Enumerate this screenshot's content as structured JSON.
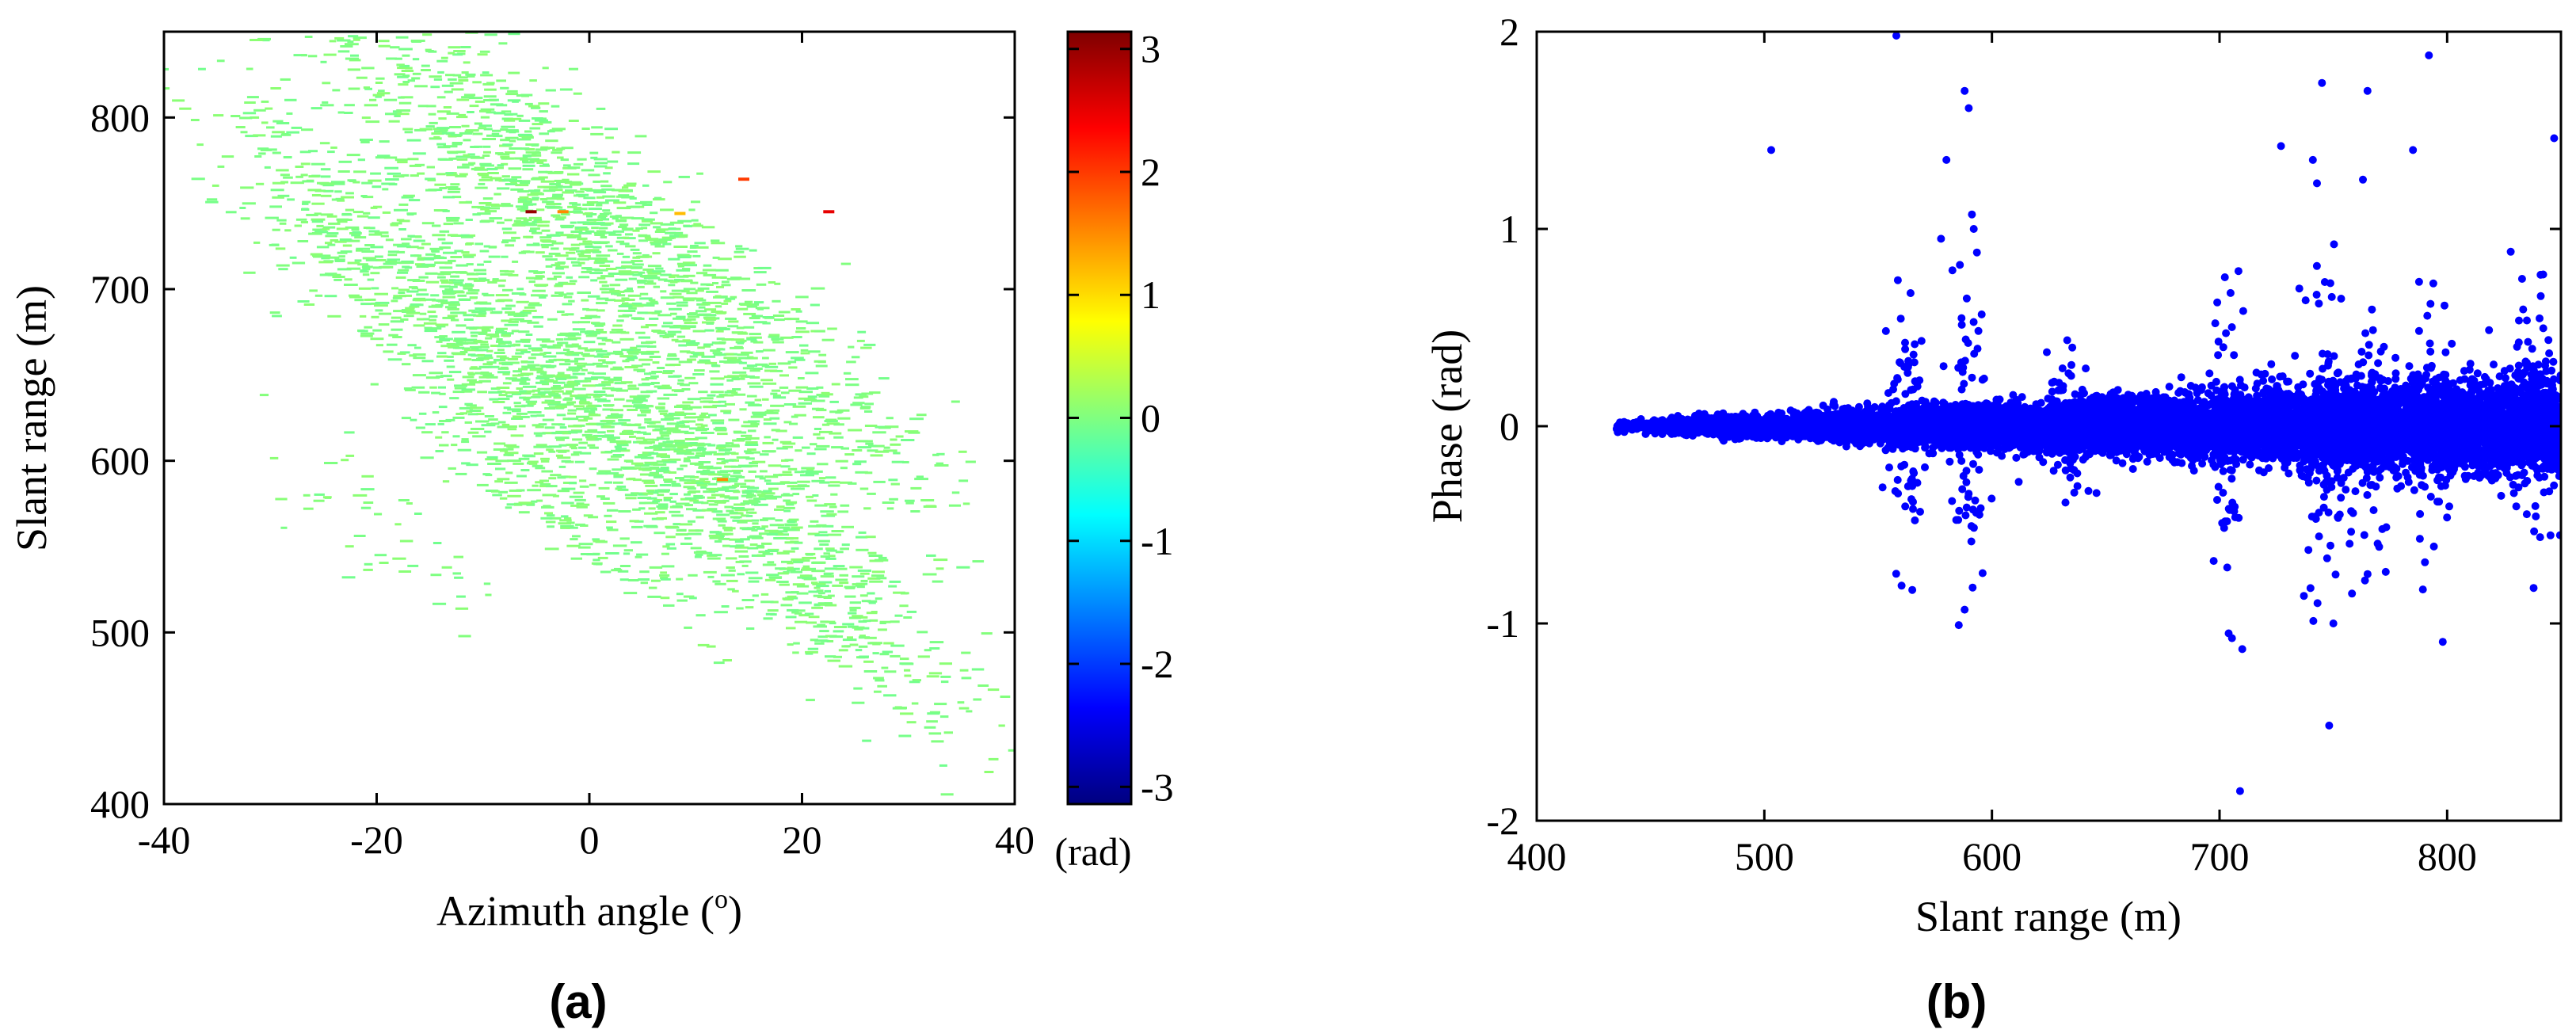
{
  "chart_data": [
    {
      "type": "heatmap",
      "panel_label": "(a)",
      "xlabel": "Azimuth angle (",
      "xlabel_sup": "o",
      "xlabel_end": ")",
      "ylabel": "Slant range (m)",
      "xlim": [
        -40,
        40
      ],
      "ylim": [
        400,
        850
      ],
      "xticks": [
        -40,
        -20,
        0,
        20,
        40
      ],
      "yticks": [
        400,
        500,
        600,
        700,
        800
      ],
      "grid": false,
      "colorbar": {
        "label": "(rad)",
        "range": [
          -3.14,
          3.14
        ],
        "ticks": [
          3,
          2,
          1,
          0,
          -1,
          -2,
          -3
        ],
        "colormap": "jet"
      },
      "dominant_value": 0,
      "hot_pixels": [
        {
          "x": -3,
          "y": 746,
          "value": 1.5
        },
        {
          "x": 8,
          "y": 745,
          "value": 1.2
        },
        {
          "x": 14,
          "y": 765,
          "value": 2.0
        },
        {
          "x": 22,
          "y": 746,
          "value": 2.5
        },
        {
          "x": -6,
          "y": 746,
          "value": 3.0
        },
        {
          "x": 12,
          "y": 590,
          "value": 1.5
        }
      ]
    },
    {
      "type": "scatter",
      "panel_label": "(b)",
      "xlabel": "Slant range (m)",
      "ylabel": "Phase (rad)",
      "xlim": [
        400,
        850
      ],
      "ylim": [
        -2,
        2
      ],
      "xticks": [
        400,
        500,
        600,
        700,
        800
      ],
      "yticks": [
        -2,
        -1,
        0,
        1,
        2
      ],
      "grid": false,
      "marker_color": "#0000ff",
      "series": [
        {
          "points_sample": [
            [
              558,
              1.98
            ],
            [
              503,
              1.4
            ],
            [
              588,
              1.7
            ],
            [
              745,
              1.74
            ],
            [
              765,
              1.7
            ],
            [
              792,
              1.88
            ],
            [
              847,
              1.46
            ],
            [
              741,
              1.35
            ],
            [
              709,
              -1.85
            ],
            [
              750,
              -1.0
            ],
            [
              704,
              -1.05
            ],
            [
              710,
              -1.13
            ],
            [
              588,
              -0.93
            ],
            [
              565,
              -0.83
            ],
            [
              838,
              -0.82
            ],
            [
              785,
              1.4
            ],
            [
              763,
              1.25
            ],
            [
              727,
              1.42
            ],
            [
              580,
              1.35
            ],
            [
              592,
              1.0
            ]
          ]
        }
      ]
    }
  ]
}
